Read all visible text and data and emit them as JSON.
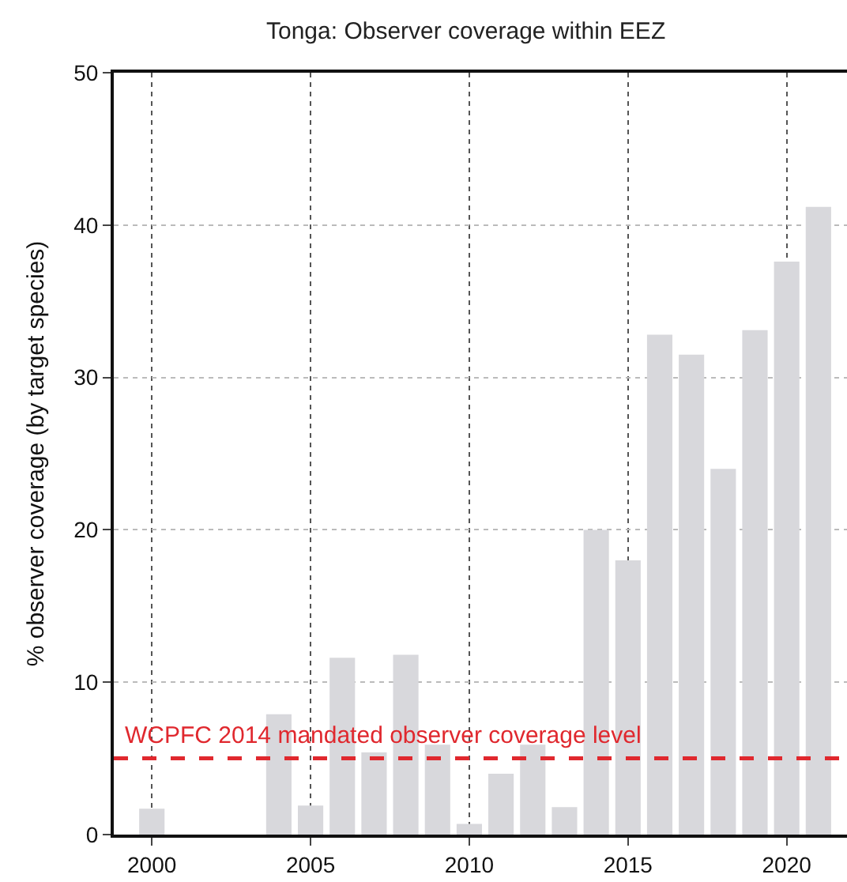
{
  "chart_data": {
    "type": "bar",
    "title": "Tonga: Observer coverage within EEZ",
    "ylabel": "% observer coverage (by target species)",
    "x": [
      2000,
      2001,
      2002,
      2003,
      2004,
      2005,
      2006,
      2007,
      2008,
      2009,
      2010,
      2011,
      2012,
      2013,
      2014,
      2015,
      2016,
      2017,
      2018,
      2019,
      2020,
      2021
    ],
    "values": [
      1.7,
      0,
      0,
      0,
      7.9,
      1.9,
      11.6,
      5.4,
      11.8,
      5.9,
      0.7,
      4.0,
      5.9,
      1.8,
      20,
      18,
      32.8,
      31.5,
      24,
      33.1,
      37.6,
      41.2
    ],
    "color": "#d8d8dc",
    "xlim": [
      1998.8,
      2021.9
    ],
    "xticks": [
      2000,
      2005,
      2010,
      2015,
      2020
    ],
    "ylim": [
      0,
      50
    ],
    "yticks": [
      0,
      10,
      20,
      30,
      40,
      50
    ],
    "grid": true,
    "ref_lines": [
      {
        "axis": "y",
        "value": 5,
        "label": "WCPFC 2014 mandated observer coverage level",
        "color": "#e0282e",
        "line_style": "dashed"
      }
    ]
  }
}
